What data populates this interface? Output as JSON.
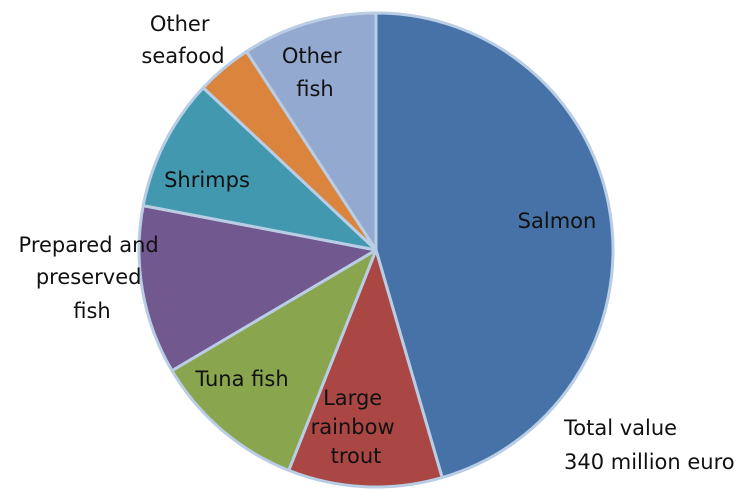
{
  "chart_data": {
    "type": "pie",
    "title": "",
    "start": "12 o'clock, clockwise",
    "slices": [
      {
        "label": "Salmon",
        "value": 45.5,
        "color": "#4672a8"
      },
      {
        "label": "Large rainbow trout",
        "value": 10.5,
        "color": "#aa4643"
      },
      {
        "label": "Tuna fish",
        "value": 10.5,
        "color": "#89a54e"
      },
      {
        "label": "Prepared and preserved fish",
        "value": 11.5,
        "color": "#71588f"
      },
      {
        "label": "Shrimps",
        "value": 9.0,
        "color": "#4198af"
      },
      {
        "label": "Other seafood",
        "value": 3.8,
        "color": "#db843d"
      },
      {
        "label": "Other fish",
        "value": 9.2,
        "color": "#93a9cf"
      }
    ],
    "annotation": [
      "Total value",
      "340 million euro"
    ]
  }
}
